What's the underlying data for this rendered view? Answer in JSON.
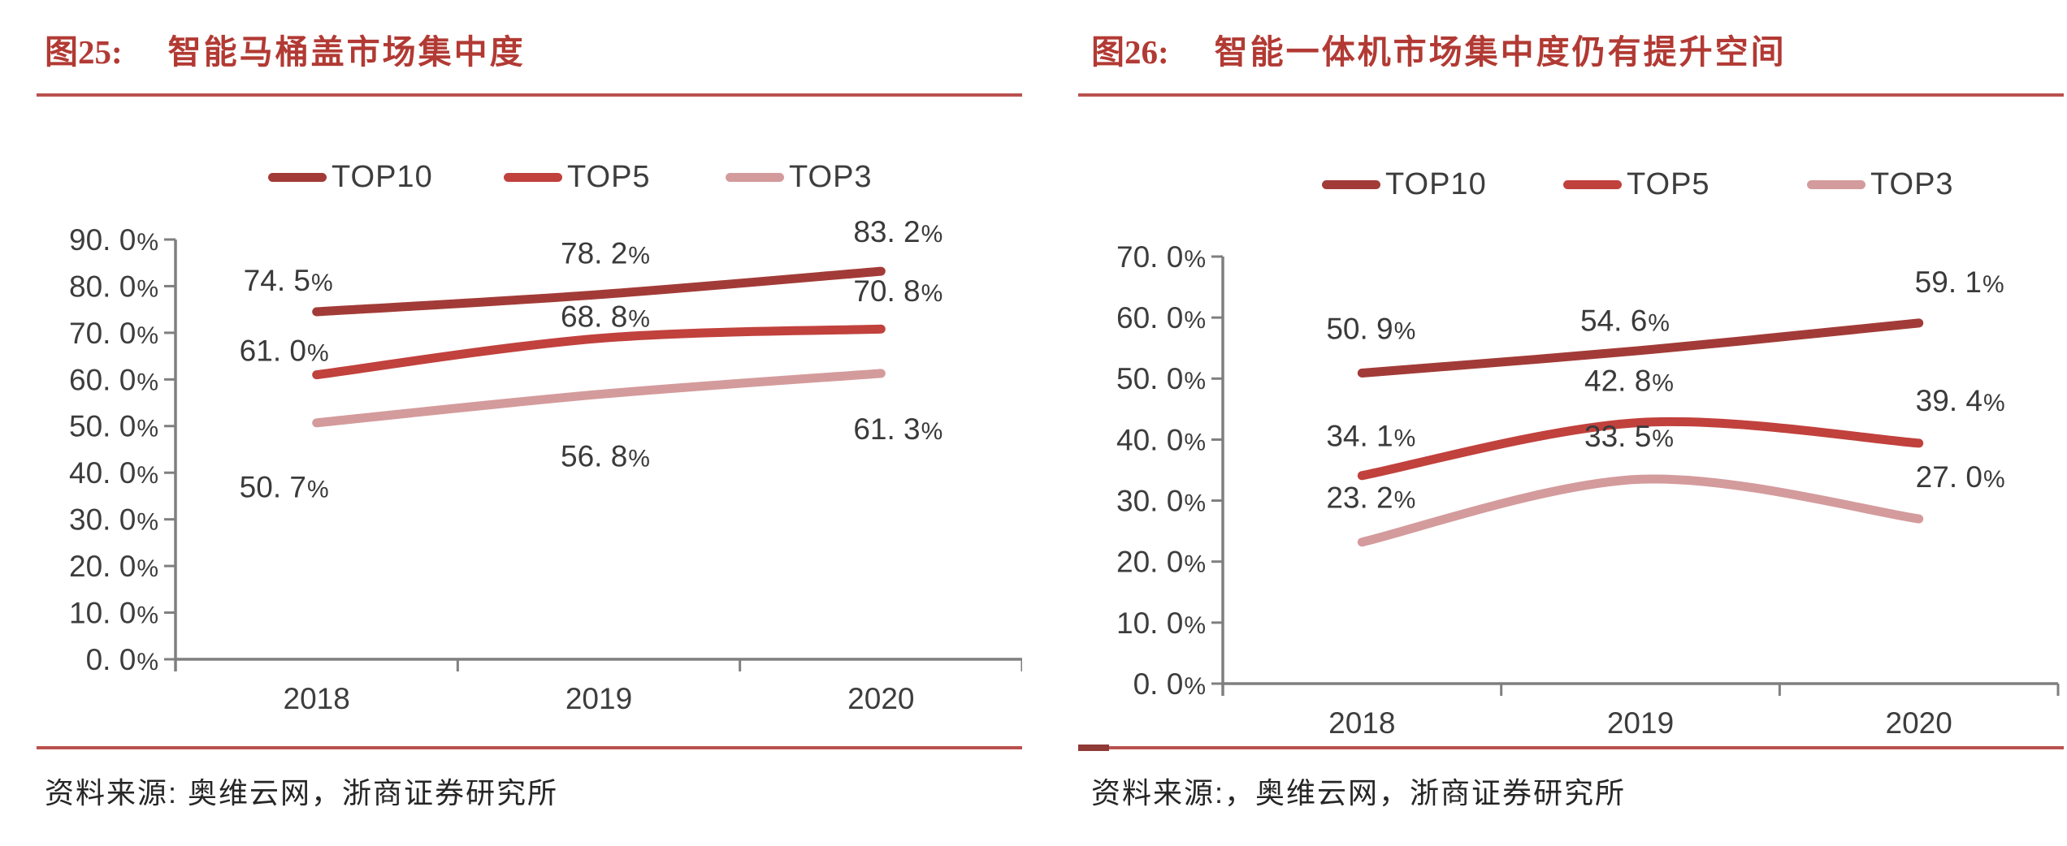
{
  "chart_data": [
    {
      "type": "line",
      "fig_label": "图25:",
      "title": "智能马桶盖市场集中度",
      "categories": [
        "2018",
        "2019",
        "2020"
      ],
      "series": [
        {
          "name": "TOP10",
          "values": [
            74.5,
            78.2,
            83.2
          ],
          "color": "#a23b37"
        },
        {
          "name": "TOP5",
          "values": [
            61.0,
            68.8,
            70.8
          ],
          "color": "#c1413d"
        },
        {
          "name": "TOP3",
          "values": [
            50.7,
            56.8,
            61.3
          ],
          "color": "#d49b9c"
        }
      ],
      "ylim": [
        0,
        90
      ],
      "ytick_step": 10,
      "ytick_labels": [
        "0. 0%",
        "10. 0%",
        "20. 0%",
        "30. 0%",
        "40. 0%",
        "50. 0%",
        "60. 0%",
        "70. 0%",
        "80. 0%",
        "90. 0%"
      ],
      "grid": false,
      "smoothed_lines": true,
      "legend_position": "top",
      "source": "资料来源: 奥维云网，浙商证券研究所",
      "label_offsets": [
        [
          [
            -35,
            -39
          ],
          [
            8,
            -51
          ],
          [
            21,
            -49
          ]
        ],
        [
          [
            -40,
            -30
          ],
          [
            8,
            -27
          ],
          [
            21,
            -47
          ]
        ],
        [
          [
            -40,
            79
          ],
          [
            8,
            76
          ],
          [
            21,
            68
          ]
        ]
      ]
    },
    {
      "type": "line",
      "fig_label": "图26:",
      "title": "智能一体机市场集中度仍有提升空间",
      "categories": [
        "2018",
        "2019",
        "2020"
      ],
      "series": [
        {
          "name": "TOP10",
          "values": [
            50.9,
            54.6,
            59.1
          ],
          "color": "#a23b37"
        },
        {
          "name": "TOP5",
          "values": [
            34.1,
            42.8,
            39.4
          ],
          "color": "#c1413d"
        },
        {
          "name": "TOP3",
          "values": [
            23.2,
            33.5,
            27.0
          ],
          "color": "#d49b9c"
        }
      ],
      "ylim": [
        0,
        70
      ],
      "ytick_step": 10,
      "ytick_labels": [
        "0. 0%",
        "10. 0%",
        "20. 0%",
        "30. 0%",
        "40. 0%",
        "50. 0%",
        "60. 0%",
        "70. 0%"
      ],
      "grid": false,
      "smoothed_lines": true,
      "legend_position": "top",
      "source": "资料来源:，奥维云网，浙商证券研究所",
      "label_offsets": [
        [
          [
            11,
            -55
          ],
          [
            -19,
            -37
          ],
          [
            50,
            -51
          ]
        ],
        [
          [
            11,
            -49
          ],
          [
            -14,
            -52
          ],
          [
            51,
            -53
          ]
        ],
        [
          [
            11,
            -55
          ],
          [
            -14,
            -53
          ],
          [
            51,
            -52
          ]
        ]
      ]
    }
  ],
  "style": {
    "axis_color": "#7f7f7f",
    "tick_label_color": "#3d3d3d",
    "data_label_color": "#3a3a3a",
    "accent_red": "#b9514e"
  }
}
